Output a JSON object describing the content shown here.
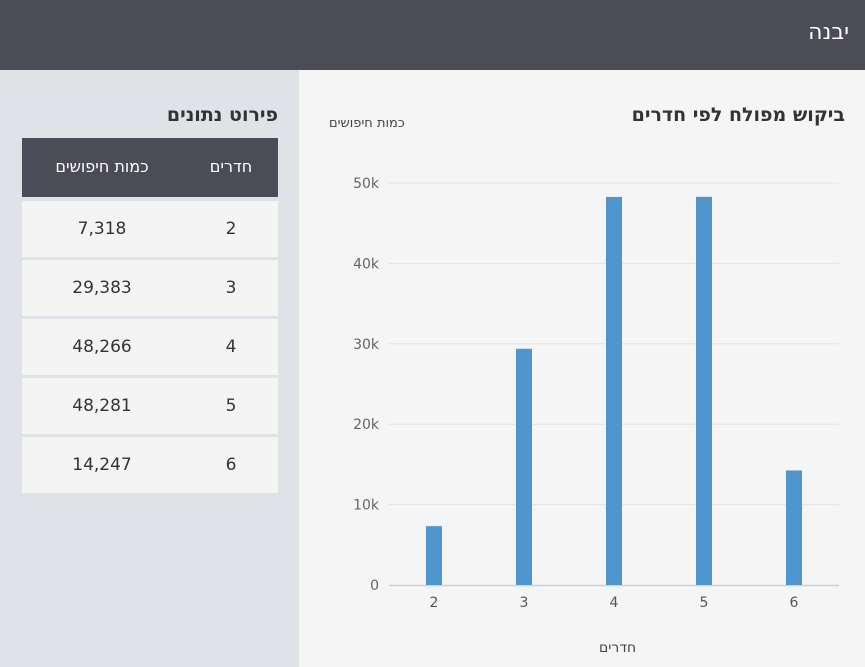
{
  "header": {
    "city": "יבנה"
  },
  "table": {
    "title": "פירוט נתונים",
    "col_rooms": "חדרים",
    "col_searches": "כמות חיפושים",
    "rows": [
      {
        "rooms": "2",
        "searches": "7,318"
      },
      {
        "rooms": "3",
        "searches": "29,383"
      },
      {
        "rooms": "4",
        "searches": "48,266"
      },
      {
        "rooms": "5",
        "searches": "48,281"
      },
      {
        "rooms": "6",
        "searches": "14,247"
      }
    ]
  },
  "chart_data": {
    "type": "bar",
    "title": "ביקוש מפולח לפי חדרים",
    "xlabel": "חדרים",
    "ylabel": "כמות חיפושים",
    "categories": [
      "2",
      "3",
      "4",
      "5",
      "6"
    ],
    "values": [
      7318,
      29383,
      48266,
      48281,
      14247
    ],
    "ylim": [
      0,
      50000
    ],
    "yticks": [
      "0",
      "10k",
      "20k",
      "30k",
      "40k",
      "50k"
    ],
    "grid": true,
    "bar_color": "#4f96cf"
  }
}
